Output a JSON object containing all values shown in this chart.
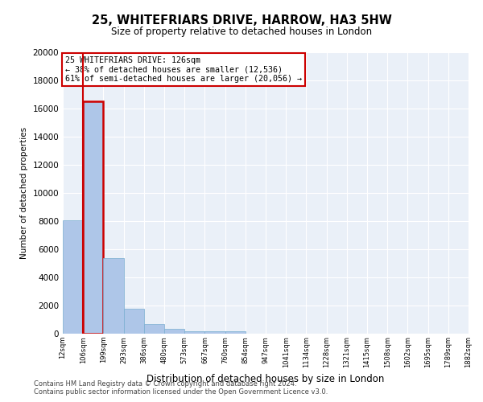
{
  "title": "25, WHITEFRIARS DRIVE, HARROW, HA3 5HW",
  "subtitle": "Size of property relative to detached houses in London",
  "xlabel": "Distribution of detached houses by size in London",
  "ylabel": "Number of detached properties",
  "bar_values": [
    8050,
    16500,
    5350,
    1750,
    700,
    320,
    200,
    170,
    150,
    0,
    0,
    0,
    0,
    0,
    0,
    0,
    0,
    0,
    0,
    0
  ],
  "bar_labels": [
    "12sqm",
    "106sqm",
    "199sqm",
    "293sqm",
    "386sqm",
    "480sqm",
    "573sqm",
    "667sqm",
    "760sqm",
    "854sqm",
    "947sqm",
    "1041sqm",
    "1134sqm",
    "1228sqm",
    "1321sqm",
    "1415sqm",
    "1508sqm",
    "1602sqm",
    "1695sqm",
    "1789sqm",
    "1882sqm"
  ],
  "bar_color": "#aec6e8",
  "bar_edge_color": "#7aaed0",
  "highlight_bar_index": 1,
  "highlight_color": "#cc0000",
  "vline_color": "#cc0000",
  "annotation_title": "25 WHITEFRIARS DRIVE: 126sqm",
  "annotation_line1": "← 38% of detached houses are smaller (12,536)",
  "annotation_line2": "61% of semi-detached houses are larger (20,056) →",
  "annotation_box_color": "#cc0000",
  "ylim": [
    0,
    20000
  ],
  "yticks": [
    0,
    2000,
    4000,
    6000,
    8000,
    10000,
    12000,
    14000,
    16000,
    18000,
    20000
  ],
  "footer1": "Contains HM Land Registry data © Crown copyright and database right 2024.",
  "footer2": "Contains public sector information licensed under the Open Government Licence v3.0.",
  "background_color": "#eaf0f8",
  "grid_color": "#ffffff",
  "figsize": [
    6.0,
    5.0
  ],
  "dpi": 100
}
